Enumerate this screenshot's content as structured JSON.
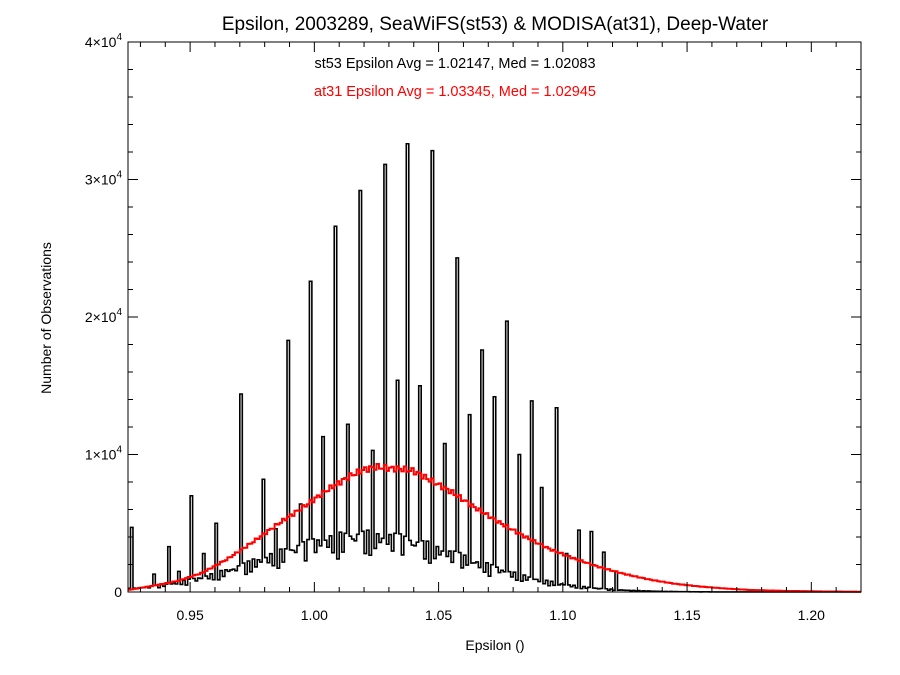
{
  "chart_data": {
    "type": "histogram",
    "title": "Epsilon, 2003289, SeaWiFS(st53) & MODISA(at31), Deep-Water",
    "xlabel": "Epsilon ()",
    "ylabel": "Number of Observations",
    "xlim": [
      0.925,
      1.22
    ],
    "ylim": [
      0,
      40000
    ],
    "x_ticks": [
      "0.95",
      "1.00",
      "1.05",
      "1.10",
      "1.15",
      "1.20"
    ],
    "y_ticks": [
      {
        "label": "0",
        "value": 0
      },
      {
        "label": "1×10",
        "exp": "4",
        "value": 10000
      },
      {
        "label": "2×10",
        "exp": "4",
        "value": 20000
      },
      {
        "label": "3×10",
        "exp": "4",
        "value": 30000
      },
      {
        "label": "4×10",
        "exp": "4",
        "value": 40000
      }
    ],
    "annotations": [
      {
        "text": "st53 Epsilon Avg = 1.02147, Med = 1.02083",
        "color": "#000000"
      },
      {
        "text": "at31 Epsilon Avg = 1.03345, Med = 1.02945",
        "color": "#ff0000"
      }
    ],
    "series": [
      {
        "name": "st53",
        "color": "#000000",
        "bin_width": 0.001,
        "spikes": [
          [
            0.926,
            4700
          ],
          [
            0.935,
            1300
          ],
          [
            0.941,
            3300
          ],
          [
            0.945,
            1500
          ],
          [
            0.95,
            7000
          ],
          [
            0.955,
            2800
          ],
          [
            0.96,
            5000
          ],
          [
            0.965,
            1500
          ],
          [
            0.97,
            14400
          ],
          [
            0.975,
            2400
          ],
          [
            0.979,
            8200
          ],
          [
            0.984,
            4600
          ],
          [
            0.989,
            18300
          ],
          [
            0.994,
            6400
          ],
          [
            0.998,
            22600
          ],
          [
            1.003,
            11300
          ],
          [
            1.008,
            26600
          ],
          [
            1.013,
            12200
          ],
          [
            1.018,
            29200
          ],
          [
            1.023,
            10300
          ],
          [
            1.028,
            31100
          ],
          [
            1.033,
            15400
          ],
          [
            1.037,
            32600
          ],
          [
            1.042,
            15000
          ],
          [
            1.047,
            32100
          ],
          [
            1.052,
            10800
          ],
          [
            1.057,
            24300
          ],
          [
            1.062,
            12900
          ],
          [
            1.067,
            17600
          ],
          [
            1.072,
            14200
          ],
          [
            1.077,
            19700
          ],
          [
            1.082,
            10000
          ],
          [
            1.087,
            13900
          ],
          [
            1.091,
            7600
          ],
          [
            1.097,
            13400
          ],
          [
            1.101,
            2800
          ],
          [
            1.106,
            4500
          ],
          [
            1.111,
            4400
          ],
          [
            1.116,
            2900
          ],
          [
            1.121,
            1500
          ]
        ],
        "baseline_peak": 4500,
        "baseline_center": 1.02,
        "baseline_sigma": 0.04
      },
      {
        "name": "at31",
        "color": "#ff0000",
        "x": [
          0.925,
          0.935,
          0.945,
          0.955,
          0.965,
          0.975,
          0.985,
          0.995,
          1.005,
          1.015,
          1.02,
          1.025,
          1.03,
          1.035,
          1.04,
          1.045,
          1.055,
          1.065,
          1.075,
          1.085,
          1.095,
          1.105,
          1.115,
          1.125,
          1.135,
          1.145,
          1.155,
          1.165,
          1.175,
          1.19,
          1.205,
          1.22
        ],
        "y": [
          150,
          450,
          800,
          1400,
          2400,
          3600,
          4900,
          6100,
          7400,
          8500,
          8900,
          9100,
          9000,
          8950,
          8800,
          8300,
          7300,
          6100,
          5000,
          4000,
          3100,
          2400,
          1800,
          1300,
          900,
          600,
          400,
          260,
          150,
          80,
          40,
          20
        ]
      }
    ]
  }
}
